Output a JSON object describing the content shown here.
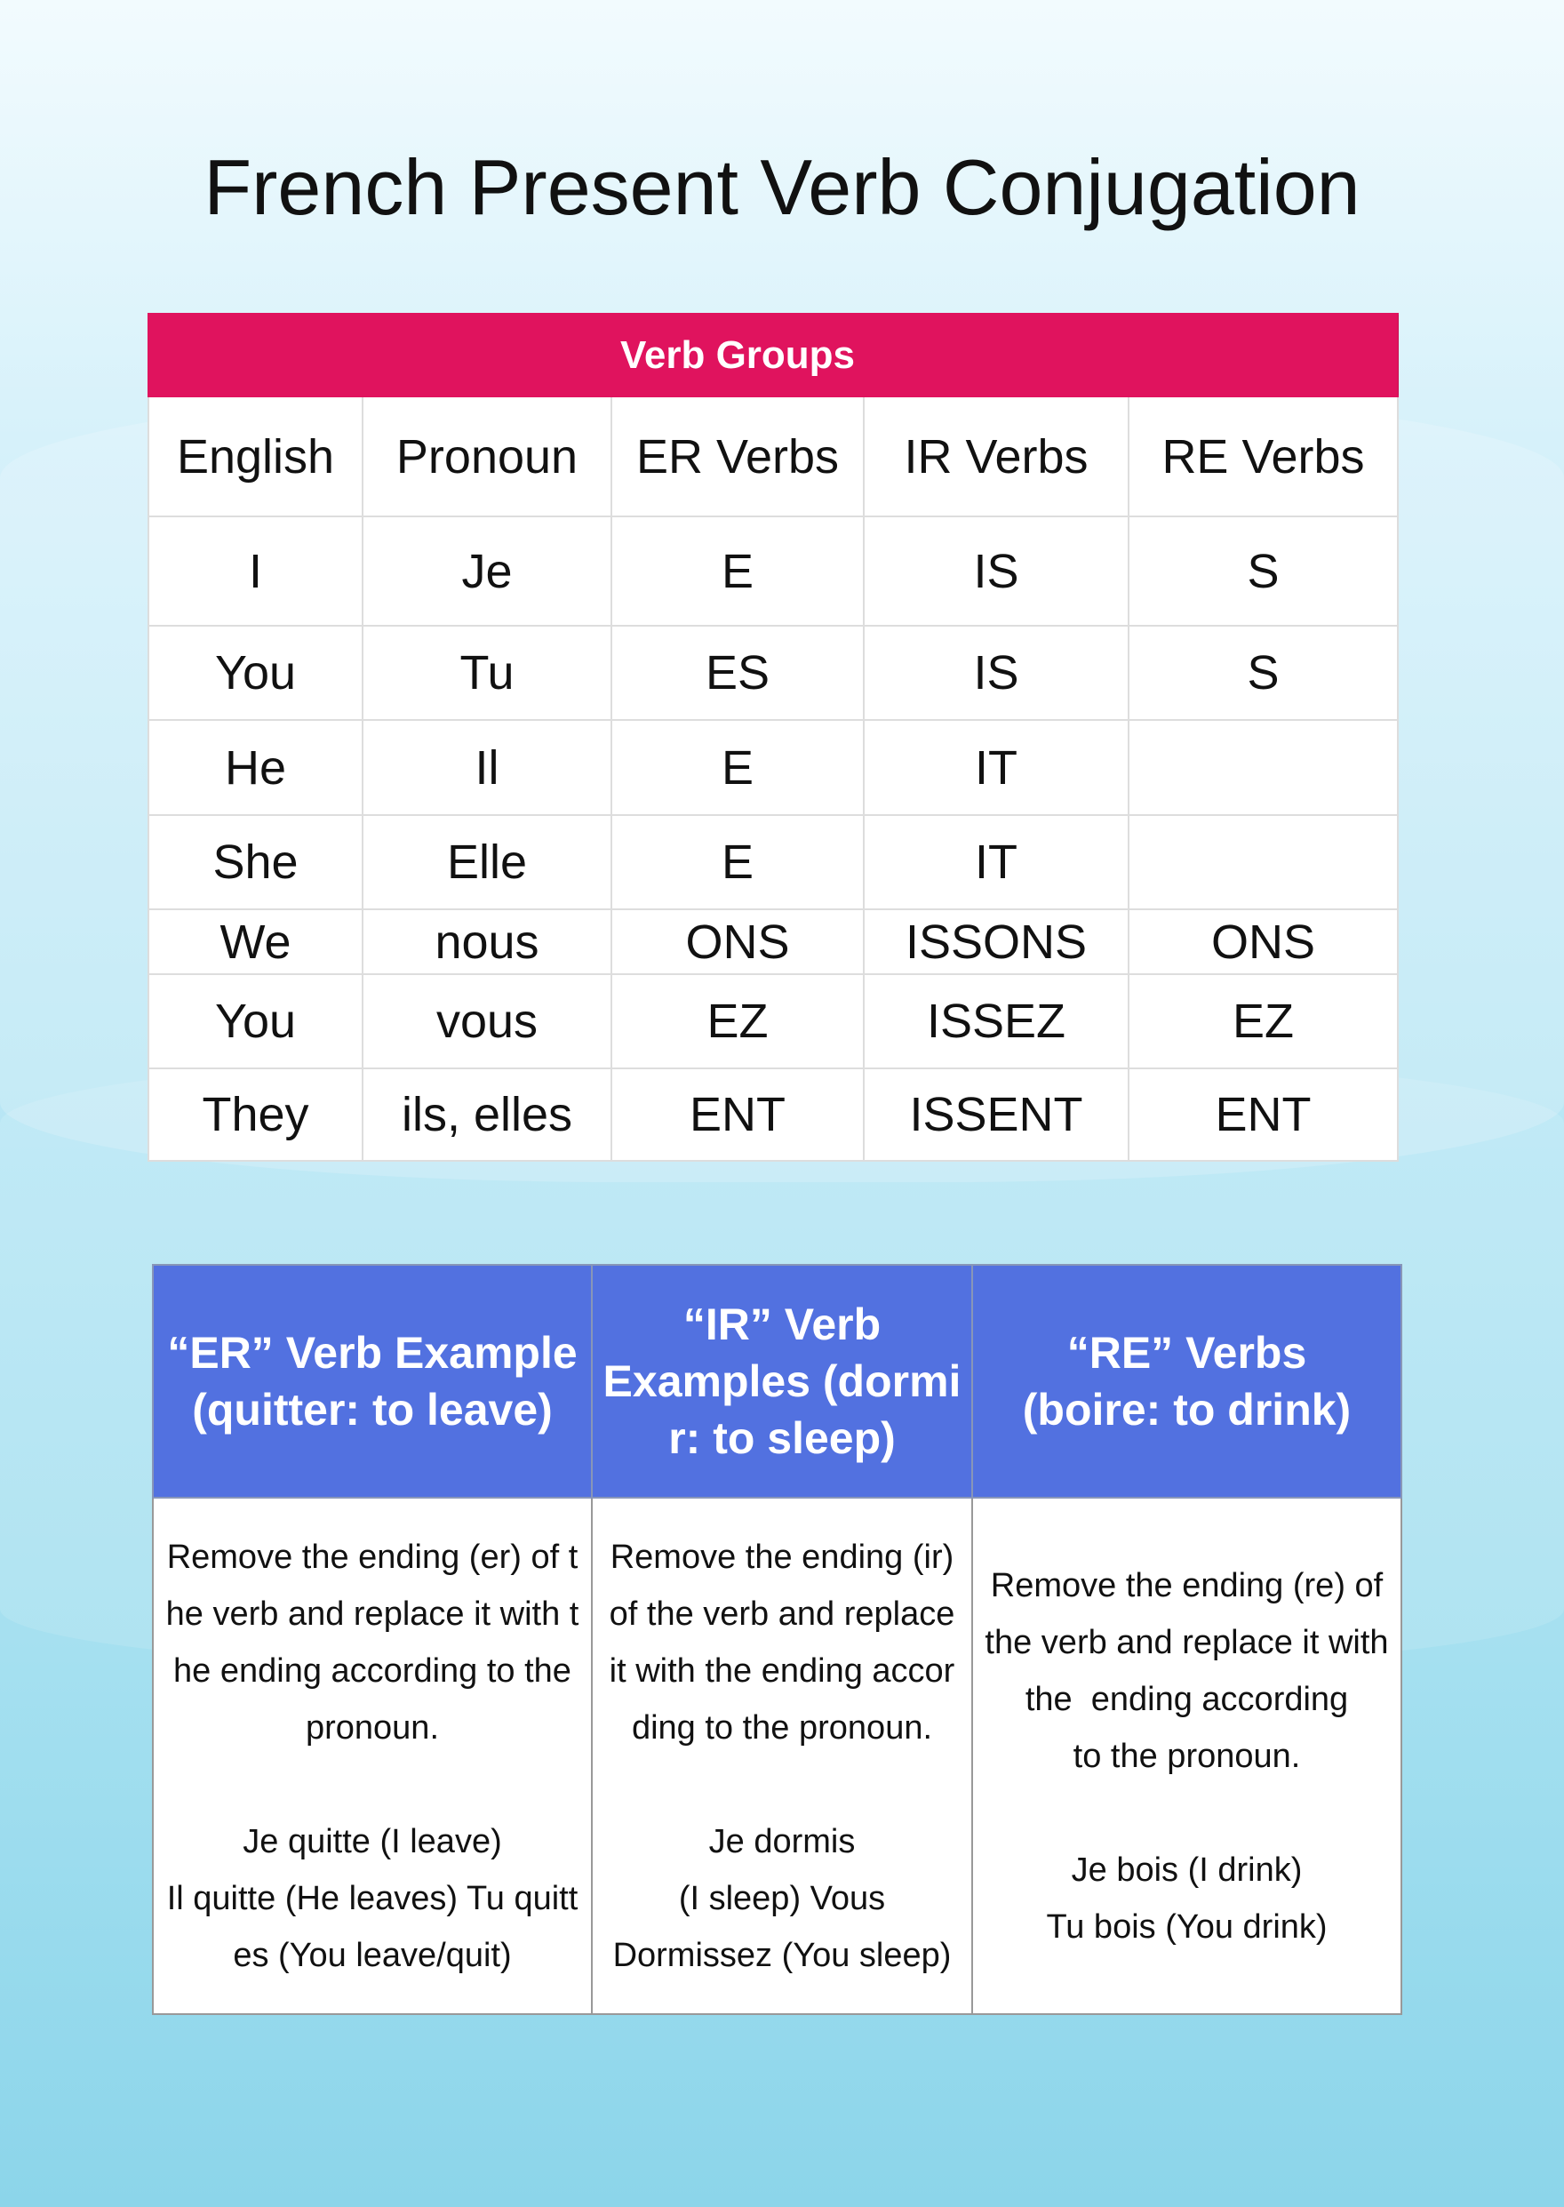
{
  "title": "French Present Verb Conjugation",
  "conjugation_table": {
    "group_header": "Verb Groups",
    "columns": [
      "English",
      "Pronoun",
      "ER Verbs",
      "IR Verbs",
      "RE Verbs"
    ],
    "rows": [
      [
        "I",
        "Je",
        "E",
        "IS",
        "S"
      ],
      [
        "You",
        "Tu",
        "ES",
        "IS",
        "S"
      ],
      [
        "He",
        "Il",
        "E",
        "IT",
        ""
      ],
      [
        "She",
        "Elle",
        "E",
        "IT",
        ""
      ],
      [
        "We",
        "nous",
        "ONS",
        "ISSONS",
        "ONS"
      ],
      [
        "You",
        "vous",
        "EZ",
        "ISSEZ",
        "EZ"
      ],
      [
        "They",
        "ils, elles",
        "ENT",
        "ISSENT",
        "ENT"
      ]
    ]
  },
  "examples_table": {
    "headers": [
      [
        "“ER” Verb Example",
        "(quitter: to leave)"
      ],
      [
        "“IR” Verb",
        "Examples (dormi",
        "r: to sleep)"
      ],
      [
        "“RE” Verbs",
        "(boire: to drink)"
      ]
    ],
    "cells": [
      [
        "Remove the ending (er) of t",
        "he verb and replace it with t",
        "he ending according to the",
        "pronoun.",
        " ",
        "Je quitte (I leave)",
        "Il quitte (He leaves) Tu quitt",
        "es (You leave/quit)"
      ],
      [
        "Remove the ending (ir)",
        "of the verb and replace",
        "it with the ending accor",
        "ding to the pronoun.",
        " ",
        "Je dormis",
        "(I sleep) Vous",
        "Dormissez (You sleep)"
      ],
      [
        "Remove the ending (re) of",
        "the verb and replace it with",
        "the  ending according",
        "to the pronoun.",
        " ",
        "Je bois (I drink)",
        "Tu bois (You drink)"
      ]
    ]
  },
  "colors": {
    "group_header_bg": "#e0135e",
    "example_header_bg": "#5271e0"
  }
}
